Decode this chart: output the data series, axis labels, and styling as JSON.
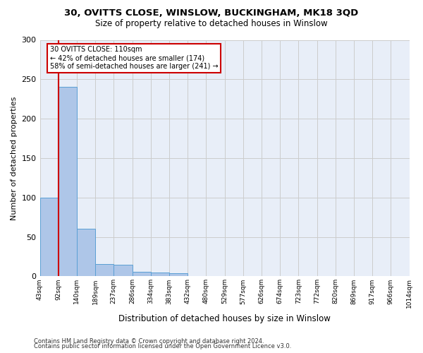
{
  "title1": "30, OVITTS CLOSE, WINSLOW, BUCKINGHAM, MK18 3QD",
  "title2": "Size of property relative to detached houses in Winslow",
  "xlabel": "Distribution of detached houses by size in Winslow",
  "ylabel": "Number of detached properties",
  "footer1": "Contains HM Land Registry data © Crown copyright and database right 2024.",
  "footer2": "Contains public sector information licensed under the Open Government Licence v3.0.",
  "bin_labels": [
    "43sqm",
    "92sqm",
    "140sqm",
    "189sqm",
    "237sqm",
    "286sqm",
    "334sqm",
    "383sqm",
    "432sqm",
    "480sqm",
    "529sqm",
    "577sqm",
    "626sqm",
    "674sqm",
    "723sqm",
    "772sqm",
    "820sqm",
    "869sqm",
    "917sqm",
    "966sqm",
    "1014sqm"
  ],
  "bar_heights": [
    100,
    240,
    60,
    16,
    15,
    6,
    5,
    4,
    0,
    0,
    0,
    0,
    0,
    0,
    0,
    0,
    0,
    0,
    0,
    0
  ],
  "bar_color": "#aec6e8",
  "bar_edge_color": "#5a9fd4",
  "grid_color": "#cccccc",
  "annotation_text": "30 OVITTS CLOSE: 110sqm\n← 42% of detached houses are smaller (174)\n58% of semi-detached houses are larger (241) →",
  "annotation_box_color": "#ffffff",
  "annotation_box_edge_color": "#cc0000",
  "vline_x": 1,
  "vline_color": "#cc0000",
  "ylim": [
    0,
    300
  ],
  "yticks": [
    0,
    50,
    100,
    150,
    200,
    250,
    300
  ],
  "bg_color": "#e8eef8"
}
